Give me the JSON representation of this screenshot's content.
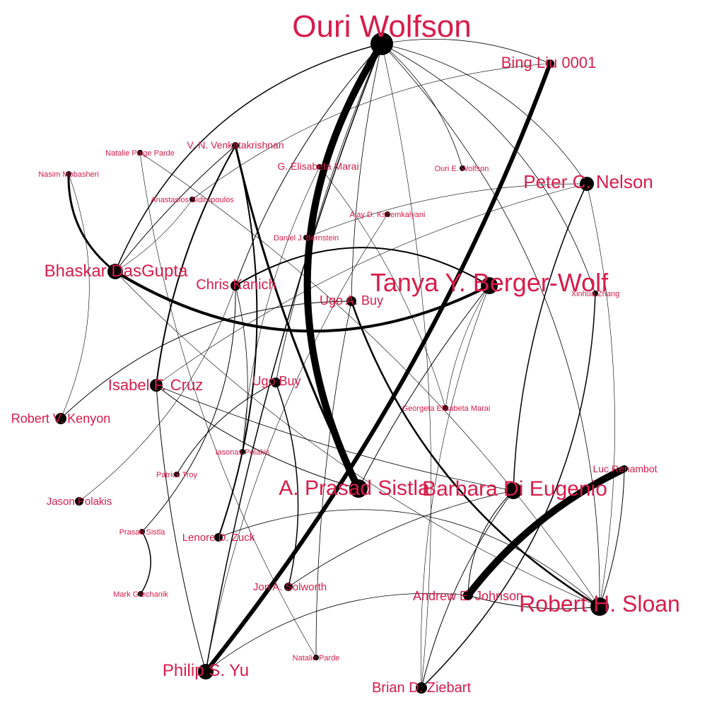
{
  "colors": {
    "label": "#d81c4a",
    "edge": "#000000",
    "node": "#000000",
    "background": "#ffffff"
  },
  "nodes": [
    {
      "id": "ouri-wolfson",
      "label": "Ouri Wolfson"
    },
    {
      "id": "bing-liu",
      "label": "Bing Liu 0001"
    },
    {
      "id": "natalie-paige-parde",
      "label": "Natalie Paige Parde"
    },
    {
      "id": "vn-venkatakrishnan",
      "label": "V. N. Venkatakrishnan"
    },
    {
      "id": "nasim-mobasheri",
      "label": "Nasim Mobasheri"
    },
    {
      "id": "g-elisabeta-marai",
      "label": "G. Elisabeta Marai"
    },
    {
      "id": "ouri-e-wolfson",
      "label": "Ouri E. Wolfson"
    },
    {
      "id": "peter-nelson",
      "label": "Peter C. Nelson"
    },
    {
      "id": "anastasios",
      "label": "Anastasios Sidiropoulos"
    },
    {
      "id": "ajay",
      "label": "Ajay D. Kshemkalyani"
    },
    {
      "id": "daniel-bernstein",
      "label": "Daniel J. Bernstein"
    },
    {
      "id": "bhaskar",
      "label": "Bhaskar DasGupta"
    },
    {
      "id": "tanya",
      "label": "Tanya Y. Berger-Wolf"
    },
    {
      "id": "chris-kanich",
      "label": "Chris Kanich"
    },
    {
      "id": "ugo-a-buy",
      "label": "Ugo A. Buy"
    },
    {
      "id": "xinhua",
      "label": "Xinhua Zhang"
    },
    {
      "id": "isabel-cruz",
      "label": "Isabel F. Cruz"
    },
    {
      "id": "ugo-buy",
      "label": "Ugo Buy"
    },
    {
      "id": "georgeta",
      "label": "Georgeta Elisabeta Marai"
    },
    {
      "id": "robert-kenyon",
      "label": "Robert V. Kenyon"
    },
    {
      "id": "iasonas",
      "label": "Iasonas Polakis"
    },
    {
      "id": "luc",
      "label": "Luc Renambot"
    },
    {
      "id": "patrick-troy",
      "label": "Patrick Troy"
    },
    {
      "id": "prasad-sistla",
      "label": "A. Prasad Sistla"
    },
    {
      "id": "barbara",
      "label": "Barbara Di Eugenio"
    },
    {
      "id": "jason-polakis",
      "label": "Jason Polakis"
    },
    {
      "id": "prasad-sistla-2",
      "label": "Prasad Sistla"
    },
    {
      "id": "lenore",
      "label": "Lenore D. Zuck"
    },
    {
      "id": "mark",
      "label": "Mark Grechanik"
    },
    {
      "id": "jon",
      "label": "Jon A. Solworth"
    },
    {
      "id": "andrew",
      "label": "Andrew E. Johnson"
    },
    {
      "id": "robert-sloan",
      "label": "Robert H. Sloan"
    },
    {
      "id": "natalie-parde",
      "label": "Natalie Parde"
    },
    {
      "id": "philip",
      "label": "Philip S. Yu"
    },
    {
      "id": "brian",
      "label": "Brian D. Ziebart"
    }
  ]
}
